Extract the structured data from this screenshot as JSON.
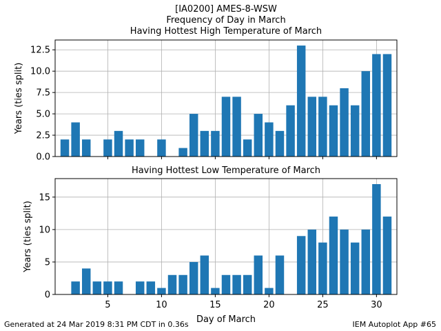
{
  "title": {
    "line1": "[IA0200] AMES-8-WSW",
    "line2": "Frequency of Day in March",
    "line3": "Having Hottest High Temperature of March"
  },
  "footer": {
    "left": "Generated at 24 Mar 2019 8:31 PM CDT in 0.36s",
    "right": "IEM Autoplot App #65"
  },
  "colors": {
    "bar": "#1f77b4",
    "grid": "#b0b0b0"
  },
  "chart_data": [
    {
      "type": "bar",
      "title": "",
      "xlabel": "",
      "ylabel": "Years (ties split)",
      "x": [
        1,
        2,
        3,
        4,
        5,
        6,
        7,
        8,
        9,
        10,
        11,
        12,
        13,
        14,
        15,
        16,
        17,
        18,
        19,
        20,
        21,
        22,
        23,
        24,
        25,
        26,
        27,
        28,
        29,
        30,
        31
      ],
      "values": [
        2,
        4,
        2,
        0,
        2,
        3,
        2,
        2,
        0,
        2,
        0,
        1,
        5,
        3,
        3,
        7,
        7,
        2,
        5,
        4,
        3,
        6,
        13,
        7,
        7,
        6,
        8,
        6,
        10,
        12,
        12
      ],
      "xlim": [
        0.1,
        31.9
      ],
      "ylim": [
        0,
        13.65
      ],
      "xticks": [
        5,
        10,
        15,
        20,
        25,
        30
      ],
      "yticks": [
        0,
        2.5,
        5,
        7.5,
        10,
        12.5
      ],
      "ytick_labels": [
        "0.0",
        "2.5",
        "5.0",
        "7.5",
        "10.0",
        "12.5"
      ],
      "show_xtick_labels": false,
      "grid": true
    },
    {
      "type": "bar",
      "title": "Having Hottest Low Temperature of March",
      "xlabel": "Day of March",
      "ylabel": "Years (ties split)",
      "x": [
        1,
        2,
        3,
        4,
        5,
        6,
        7,
        8,
        9,
        10,
        11,
        12,
        13,
        14,
        15,
        16,
        17,
        18,
        19,
        20,
        21,
        22,
        23,
        24,
        25,
        26,
        27,
        28,
        29,
        30,
        31
      ],
      "values": [
        0,
        2,
        4,
        2,
        2,
        2,
        0,
        2,
        2,
        1,
        3,
        3,
        5,
        6,
        1,
        3,
        3,
        3,
        6,
        1,
        6,
        0,
        9,
        10,
        8,
        12,
        10,
        8,
        10,
        17,
        12
      ],
      "xlim": [
        0.1,
        31.9
      ],
      "ylim": [
        0,
        17.85
      ],
      "xticks": [
        5,
        10,
        15,
        20,
        25,
        30
      ],
      "yticks": [
        0,
        5,
        10,
        15
      ],
      "ytick_labels": [
        "0",
        "5",
        "10",
        "15"
      ],
      "show_xtick_labels": true,
      "grid": true
    }
  ]
}
